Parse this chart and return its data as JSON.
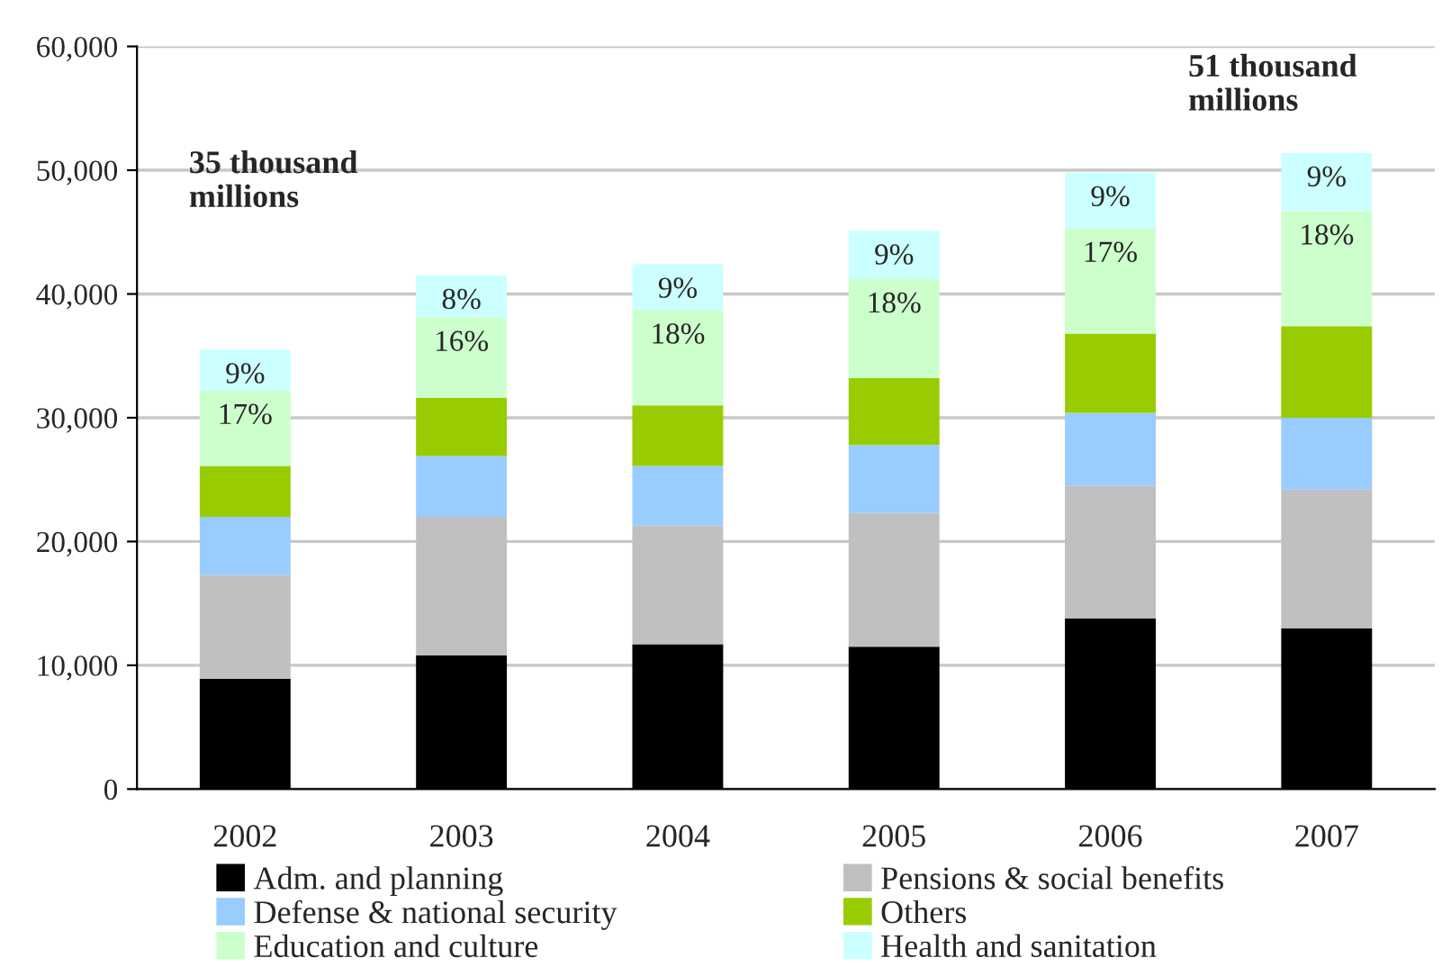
{
  "chart_data": {
    "type": "bar",
    "stacked": true,
    "categories": [
      "2002",
      "2003",
      "2004",
      "2005",
      "2006",
      "2007"
    ],
    "series": [
      {
        "name": "Adm. and planning",
        "color": "#000000",
        "values": [
          8900,
          10800,
          11700,
          11500,
          13800,
          13000
        ]
      },
      {
        "name": "Pensions & social benefits",
        "color": "#c0c0c0",
        "values": [
          8400,
          11200,
          9600,
          10800,
          10700,
          11200
        ]
      },
      {
        "name": "Defense & national security",
        "color": "#99ccff",
        "values": [
          4700,
          4900,
          4800,
          5500,
          5900,
          5800
        ]
      },
      {
        "name": "Others",
        "color": "#99cc00",
        "values": [
          4100,
          4700,
          4900,
          5400,
          6400,
          7400
        ]
      },
      {
        "name": "Education and culture",
        "color": "#ccffcc",
        "values": [
          6100,
          6500,
          7700,
          8000,
          8500,
          9300
        ]
      },
      {
        "name": "Health and sanitation",
        "color": "#ccffff",
        "values": [
          3300,
          3400,
          3700,
          3900,
          4500,
          4700
        ]
      }
    ],
    "ylim": [
      0,
      60000
    ],
    "yticks": [
      {
        "value": 0,
        "label": "0"
      },
      {
        "value": 10000,
        "label": "10,000"
      },
      {
        "value": 20000,
        "label": "20,000"
      },
      {
        "value": 30000,
        "label": "30,000"
      },
      {
        "value": 40000,
        "label": "40,000"
      },
      {
        "value": 50000,
        "label": "50,000"
      },
      {
        "value": 60000,
        "label": "60,000"
      }
    ],
    "grid": "y",
    "legend": "bottom",
    "annotations": [
      "35 thousand\nmillions",
      "51 thousand\nmillions",
      {
        "text": "17%",
        "x": "2002",
        "y": 32200
      },
      {
        "text": "16%",
        "x": "2003",
        "y": 38100
      },
      {
        "text": "18%",
        "x": "2004",
        "y": 38700
      },
      {
        "text": "18%",
        "x": "2005",
        "y": 41200
      },
      {
        "text": "17%",
        "x": "2006",
        "y": 45300
      },
      {
        "text": "18%",
        "x": "2007",
        "y": 46700
      },
      {
        "text": "9%",
        "x": "2002",
        "y": 35500
      },
      {
        "text": "8%",
        "x": "2003",
        "y": 41500
      },
      {
        "text": "9%",
        "x": "2004",
        "y": 42400
      },
      {
        "text": "9%",
        "x": "2005",
        "y": 45100
      },
      {
        "text": "9%",
        "x": "2006",
        "y": 49800
      },
      {
        "text": "9%",
        "x": "2007",
        "y": 51400
      }
    ]
  }
}
